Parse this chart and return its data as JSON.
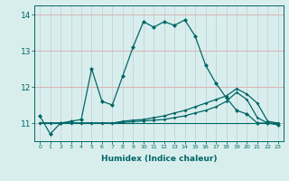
{
  "xlabel": "Humidex (Indice chaleur)",
  "x_values": [
    0,
    1,
    2,
    3,
    4,
    5,
    6,
    7,
    8,
    9,
    10,
    11,
    12,
    13,
    14,
    15,
    16,
    17,
    18,
    19,
    20,
    21,
    22,
    23
  ],
  "line1": [
    11.2,
    10.7,
    11.0,
    11.05,
    11.1,
    12.5,
    11.6,
    11.5,
    12.3,
    13.1,
    13.8,
    13.65,
    13.8,
    13.7,
    13.85,
    13.4,
    12.6,
    12.1,
    11.7,
    11.35,
    11.25,
    11.0,
    11.0,
    10.95
  ],
  "line2": [
    11.0,
    11.0,
    11.0,
    11.0,
    11.0,
    11.0,
    11.0,
    11.0,
    11.05,
    11.08,
    11.1,
    11.15,
    11.2,
    11.28,
    11.35,
    11.45,
    11.55,
    11.65,
    11.75,
    11.95,
    11.8,
    11.55,
    11.05,
    11.0
  ],
  "line3": [
    11.0,
    11.0,
    11.0,
    11.0,
    11.0,
    11.0,
    11.0,
    11.0,
    11.02,
    11.04,
    11.06,
    11.08,
    11.1,
    11.15,
    11.2,
    11.28,
    11.35,
    11.45,
    11.6,
    11.85,
    11.65,
    11.15,
    11.0,
    11.0
  ],
  "line4": [
    11.0,
    11.0,
    11.0,
    11.0,
    11.0,
    11.0,
    11.0,
    11.0,
    11.0,
    11.0,
    11.0,
    11.0,
    11.0,
    11.0,
    11.0,
    11.0,
    11.0,
    11.0,
    11.0,
    11.0,
    11.0,
    11.0,
    11.0,
    11.0
  ],
  "line_color": "#006666",
  "bg_color": "#d8eeed",
  "grid_color_h": "#d8a8a8",
  "grid_color_v": "#c8c8d8",
  "ylim": [
    10.5,
    14.25
  ],
  "yticks": [
    11,
    12,
    13,
    14
  ],
  "xlim": [
    -0.5,
    23.5
  ]
}
